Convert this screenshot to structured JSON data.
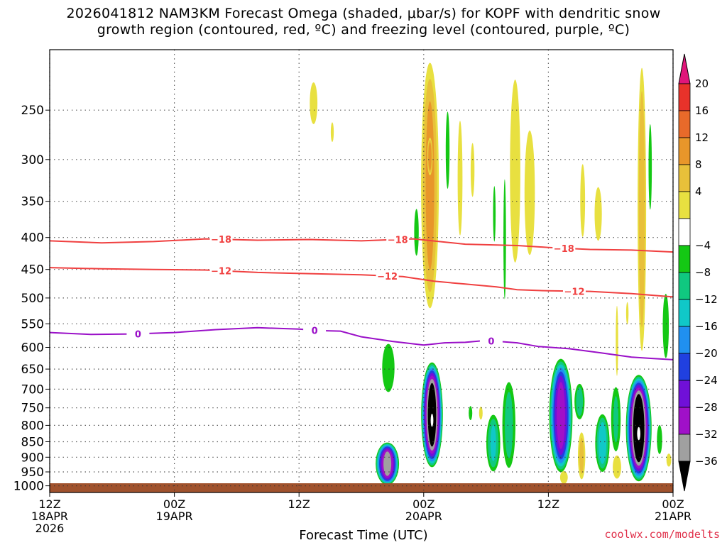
{
  "title": {
    "line1": "2026041812 NAM3KM Forecast Omega (shaded, μbar/s) for KOPF with dendritic snow",
    "line2": "growth region (contoured, red, ºC) and freezing level (contoured, purple, ºC)"
  },
  "credit": "coolwx.com/modelts",
  "chart_data": {
    "type": "heatmap",
    "title": "2026041812 NAM3KM Forecast Omega (shaded, μbar/s) for KOPF with dendritic snow growth region (contoured, red, ºC) and freezing level (contoured, purple, ºC)",
    "xlabel": "Forecast Time (UTC)",
    "ylabel": "",
    "x_range_hours": [
      0,
      60
    ],
    "y_range_hpa": [
      200,
      1025
    ],
    "y_scale": "log-pressure",
    "grid": true,
    "x_ticks": [
      {
        "hour": 0,
        "label": [
          "12Z",
          "18APR",
          "2026"
        ]
      },
      {
        "hour": 12,
        "label": [
          "00Z",
          "19APR"
        ]
      },
      {
        "hour": 24,
        "label": [
          "12Z"
        ]
      },
      {
        "hour": 36,
        "label": [
          "00Z",
          "20APR"
        ]
      },
      {
        "hour": 48,
        "label": [
          "12Z"
        ]
      },
      {
        "hour": 60,
        "label": [
          "00Z",
          "21APR"
        ]
      }
    ],
    "y_ticks": [
      250,
      300,
      350,
      400,
      450,
      500,
      550,
      600,
      650,
      700,
      750,
      800,
      850,
      900,
      950,
      1000
    ],
    "colorbar": {
      "labels": [
        "20",
        "16",
        "12",
        "8",
        "4",
        "−4",
        "−8",
        "−12",
        "−16",
        "−20",
        "−24",
        "−28",
        "−32",
        "−36"
      ],
      "colors": [
        "#e0157a",
        "#e8322a",
        "#e86a2a",
        "#e8962a",
        "#e8c03a",
        "#e8e040",
        "#ffffff",
        "#14c814",
        "#10c880",
        "#10c8c8",
        "#2090f0",
        "#2040e0",
        "#7010d8",
        "#a010c8",
        "#a0a0a0",
        "#000000"
      ]
    },
    "contour_series": [
      {
        "name": "-18",
        "color": "#f04040",
        "points": [
          [
            0,
            405
          ],
          [
            5,
            408
          ],
          [
            10,
            406
          ],
          [
            15,
            402
          ],
          [
            20,
            404
          ],
          [
            25,
            403
          ],
          [
            30,
            405
          ],
          [
            35,
            402
          ],
          [
            40,
            410
          ],
          [
            45,
            412
          ],
          [
            48,
            415
          ],
          [
            52,
            418
          ],
          [
            56,
            419
          ],
          [
            60,
            422
          ]
        ],
        "labels_at_hours": [
          16.5,
          33.5,
          49.5
        ]
      },
      {
        "name": "-12",
        "color": "#f04040",
        "points": [
          [
            0,
            447
          ],
          [
            5,
            449
          ],
          [
            10,
            450
          ],
          [
            15,
            451
          ],
          [
            20,
            455
          ],
          [
            25,
            457
          ],
          [
            30,
            459
          ],
          [
            34,
            462
          ],
          [
            37,
            470
          ],
          [
            40,
            475
          ],
          [
            43,
            480
          ],
          [
            45,
            485
          ],
          [
            48,
            487
          ],
          [
            52,
            488
          ],
          [
            56,
            492
          ],
          [
            60,
            498
          ]
        ],
        "labels_at_hours": [
          16.5,
          32.5,
          50.5
        ]
      },
      {
        "name": "0",
        "color": "#9a10c8",
        "points": [
          [
            0,
            568
          ],
          [
            4,
            572
          ],
          [
            8,
            571
          ],
          [
            12,
            568
          ],
          [
            16,
            562
          ],
          [
            20,
            558
          ],
          [
            24,
            561
          ],
          [
            26,
            564
          ],
          [
            28,
            565
          ],
          [
            30,
            577
          ],
          [
            33,
            587
          ],
          [
            36,
            595
          ],
          [
            38,
            590
          ],
          [
            40,
            589
          ],
          [
            42,
            585
          ],
          [
            45,
            590
          ],
          [
            47,
            598
          ],
          [
            50,
            603
          ],
          [
            53,
            612
          ],
          [
            56,
            622
          ],
          [
            58,
            625
          ],
          [
            60,
            628
          ]
        ],
        "labels_at_hours": [
          8.5,
          25.5,
          42.5
        ]
      }
    ],
    "omega_features": [
      {
        "hour": 25.4,
        "p_top": 220,
        "p_bot": 270,
        "hw": 0.6,
        "vmax": 5
      },
      {
        "hour": 27.2,
        "p_top": 258,
        "p_bot": 285,
        "hw": 0.25,
        "vmax": 4.5
      },
      {
        "hour": 36.6,
        "p_top": 200,
        "p_bot": 545,
        "hw": 1.0,
        "vmax": 13
      },
      {
        "hour": 35.3,
        "p_top": 350,
        "p_bot": 440,
        "hw": 0.35,
        "vmax": -5
      },
      {
        "hour": 38.3,
        "p_top": 240,
        "p_bot": 350,
        "hw": 0.3,
        "vmax": -5
      },
      {
        "hour": 36.6,
        "p_top": 275,
        "p_bot": 320,
        "hw": 0.3,
        "vmax": 15
      },
      {
        "hour": 40.7,
        "p_top": 270,
        "p_bot": 360,
        "hw": 0.35,
        "vmax": 4
      },
      {
        "hour": 39.5,
        "p_top": 240,
        "p_bot": 430,
        "hw": 0.4,
        "vmax": 4.5
      },
      {
        "hour": 42.8,
        "p_top": 320,
        "p_bot": 420,
        "hw": 0.2,
        "vmax": -5
      },
      {
        "hour": 43.8,
        "p_top": 300,
        "p_bot": 540,
        "hw": 0.2,
        "vmax": -5
      },
      {
        "hour": 44.8,
        "p_top": 200,
        "p_bot": 490,
        "hw": 0.8,
        "vmax": 5
      },
      {
        "hour": 46.2,
        "p_top": 250,
        "p_bot": 460,
        "hw": 0.8,
        "vmax": 5
      },
      {
        "hour": 51.3,
        "p_top": 290,
        "p_bot": 420,
        "hw": 0.4,
        "vmax": 4.5
      },
      {
        "hour": 52.8,
        "p_top": 320,
        "p_bot": 420,
        "hw": 0.6,
        "vmax": 4.5
      },
      {
        "hour": 57.0,
        "p_top": 200,
        "p_bot": 650,
        "hw": 0.5,
        "vmax": 11
      },
      {
        "hour": 57.8,
        "p_top": 250,
        "p_bot": 380,
        "hw": 0.25,
        "vmax": -5
      },
      {
        "hour": 59.3,
        "p_top": 480,
        "p_bot": 640,
        "hw": 0.4,
        "vmax": -7
      },
      {
        "hour": 54.6,
        "p_top": 490,
        "p_bot": 700,
        "hw": 0.2,
        "vmax": 4.5
      },
      {
        "hour": 55.6,
        "p_top": 500,
        "p_bot": 560,
        "hw": 0.2,
        "vmax": 4.5
      },
      {
        "hour": 32.6,
        "p_top": 582,
        "p_bot": 720,
        "hw": 0.8,
        "vmax": -7.5
      },
      {
        "hour": 36.8,
        "p_top": 630,
        "p_bot": 940,
        "hw": 1.1,
        "vmax": -40
      },
      {
        "hour": 32.5,
        "p_top": 850,
        "p_bot": 1000,
        "hw": 1.2,
        "vmax": -34
      },
      {
        "hour": 40.5,
        "p_top": 740,
        "p_bot": 790,
        "hw": 0.25,
        "vmax": -6
      },
      {
        "hour": 41.5,
        "p_top": 740,
        "p_bot": 790,
        "hw": 0.3,
        "vmax": 4.5
      },
      {
        "hour": 42.7,
        "p_top": 760,
        "p_bot": 960,
        "hw": 0.8,
        "vmax": -12
      },
      {
        "hour": 44.2,
        "p_top": 665,
        "p_bot": 960,
        "hw": 0.8,
        "vmax": -9
      },
      {
        "hour": 49.2,
        "p_top": 620,
        "p_bot": 960,
        "hw": 1.2,
        "vmax": -30
      },
      {
        "hour": 51.0,
        "p_top": 680,
        "p_bot": 790,
        "hw": 0.6,
        "vmax": -10
      },
      {
        "hour": 51.2,
        "p_top": 810,
        "p_bot": 990,
        "hw": 0.45,
        "vmax": 9
      },
      {
        "hour": 49.5,
        "p_top": 940,
        "p_bot": 1000,
        "hw": 0.6,
        "vmax": 5
      },
      {
        "hour": 53.2,
        "p_top": 760,
        "p_bot": 960,
        "hw": 0.8,
        "vmax": -14
      },
      {
        "hour": 54.5,
        "p_top": 680,
        "p_bot": 900,
        "hw": 0.6,
        "vmax": -8
      },
      {
        "hour": 54.6,
        "p_top": 880,
        "p_bot": 990,
        "hw": 0.7,
        "vmax": 4.5
      },
      {
        "hour": 56.7,
        "p_top": 660,
        "p_bot": 990,
        "hw": 1.3,
        "vmax": -42
      },
      {
        "hour": 58.7,
        "p_top": 790,
        "p_bot": 900,
        "hw": 0.35,
        "vmax": -7
      },
      {
        "hour": 59.6,
        "p_top": 880,
        "p_bot": 940,
        "hw": 0.4,
        "vmax": 4.5
      }
    ]
  }
}
